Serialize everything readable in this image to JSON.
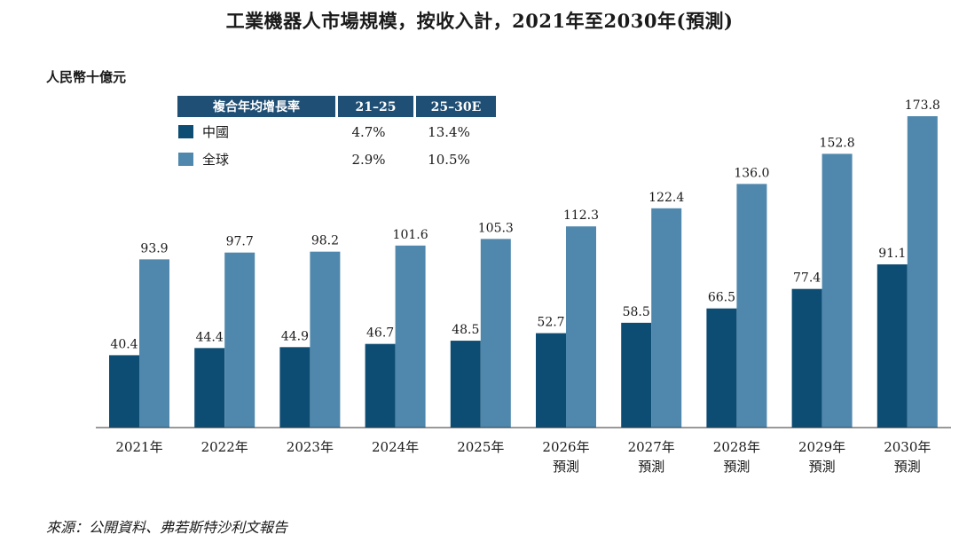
{
  "page": {
    "title": "工業機器人市場規模，按收入計，2021年至2030年(預測)",
    "unit_label": "人民幣十億元",
    "source": "來源：公開資料、弗若斯特沙利文報告"
  },
  "cagr_table": {
    "header": [
      "複合年均增長率",
      "21–25",
      "25–30E"
    ],
    "rows": [
      {
        "name": "中國",
        "values": [
          "4.7%",
          "13.4%"
        ],
        "color": "#0e4d73"
      },
      {
        "name": "全球",
        "values": [
          "2.9%",
          "10.5%"
        ],
        "color": "#5088ad"
      }
    ],
    "header_color": "#1f4f74"
  },
  "chart_data": {
    "type": "bar",
    "title": "工業機器人市場規模，按收入計，2021年至2030年(預測)",
    "ylabel": "人民幣十億元",
    "categories": [
      [
        "2021年"
      ],
      [
        "2022年"
      ],
      [
        "2023年"
      ],
      [
        "2024年"
      ],
      [
        "2025年"
      ],
      [
        "2026年",
        "預測"
      ],
      [
        "2027年",
        "預測"
      ],
      [
        "2028年",
        "預測"
      ],
      [
        "2029年",
        "預測"
      ],
      [
        "2030年",
        "預測"
      ]
    ],
    "series": [
      {
        "name": "中國",
        "color": "#0e4d73",
        "values": [
          40.4,
          44.4,
          44.9,
          46.7,
          48.5,
          52.7,
          58.5,
          66.5,
          77.4,
          91.1
        ]
      },
      {
        "name": "全球",
        "color": "#5088ad",
        "values": [
          93.9,
          97.7,
          98.2,
          101.6,
          105.3,
          112.3,
          122.4,
          136.0,
          152.8,
          173.8
        ]
      }
    ],
    "value_labels": [
      [
        "40.4",
        "44.4",
        "44.9",
        "46.7",
        "48.5",
        "52.7",
        "58.5",
        "66.5",
        "77.4",
        "91.1"
      ],
      [
        "93.9",
        "97.7",
        "98.2",
        "101.6",
        "105.3",
        "112.3",
        "122.4",
        "136.0",
        "152.8",
        "173.8"
      ]
    ],
    "ylim": [
      0,
      190
    ],
    "grid": false,
    "legend": "top-left"
  }
}
